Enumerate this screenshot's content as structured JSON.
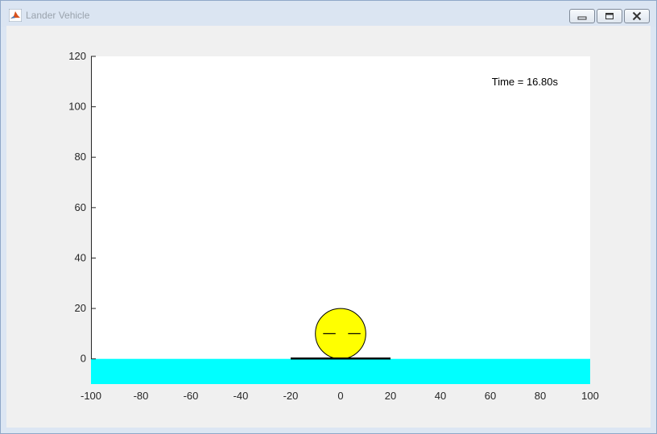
{
  "window": {
    "title": "Lander Vehicle",
    "app_icon": "matlab-icon",
    "buttons": [
      "minimize-icon",
      "restore-icon",
      "close-icon"
    ]
  },
  "plot": {
    "time_label": "Time = 16.80s",
    "colors": {
      "ground": "#00ffff",
      "lander_body": "#ffff00",
      "outline": "#000000",
      "plot_bg": "#ffffff",
      "figure_bg": "#f0f0f0"
    },
    "x_ticks": [
      "-100",
      "-80",
      "-60",
      "-40",
      "-20",
      "0",
      "20",
      "40",
      "60",
      "80",
      "100"
    ],
    "y_ticks": [
      "0",
      "20",
      "40",
      "60",
      "80",
      "100",
      "120"
    ]
  },
  "chart_data": {
    "type": "scatter",
    "xlim": [
      -100,
      100
    ],
    "ylim": [
      -10,
      120
    ],
    "x_tick_values": [
      -100,
      -80,
      -60,
      -40,
      -20,
      0,
      20,
      40,
      60,
      80,
      100
    ],
    "y_tick_values": [
      0,
      20,
      40,
      60,
      80,
      100,
      120
    ],
    "ground": {
      "y_top": 0,
      "y_bottom": -10,
      "color": "#00ffff"
    },
    "landing_pad": {
      "x_start": -20,
      "x_end": 20,
      "y": 0
    },
    "lander": {
      "center_x": 0,
      "center_y": 10,
      "radius": 10,
      "color": "#ffff00"
    },
    "eyes": [
      {
        "x_start": -7,
        "x_end": -2,
        "y": 10
      },
      {
        "x_start": 3,
        "x_end": 8,
        "y": 10
      }
    ],
    "annotation": "Time = 16.80s"
  }
}
